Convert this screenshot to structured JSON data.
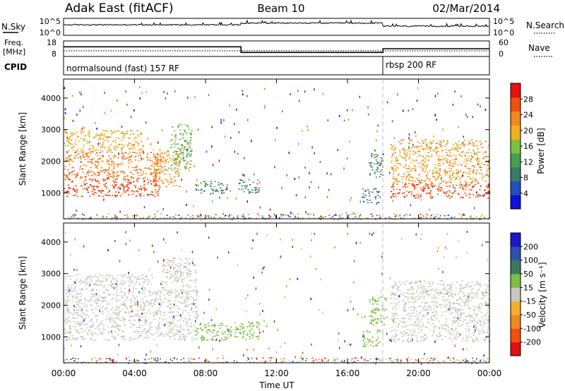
{
  "header": {
    "station": "Adak East (fitACF)",
    "beam": "Beam 10",
    "date": "02/Mar/2014"
  },
  "noise_panel": {
    "left_label": "N.Sky",
    "right_label": "N.Search",
    "left_ticks": [
      "10^5",
      "10^0"
    ],
    "right_ticks": [
      "10^5",
      "10^0"
    ]
  },
  "freq_panel": {
    "left_label_1": "Freq.",
    "left_label_2": "[MHz]",
    "left_ticks": [
      "18",
      "8"
    ],
    "right_label": "Nave",
    "right_ticks": [
      "60",
      "0"
    ],
    "cpid_label": "CPID",
    "segments": [
      {
        "from_hour": 0,
        "to_hour": 10,
        "freq": 14.2,
        "nave": 22
      },
      {
        "from_hour": 10,
        "to_hour": 18,
        "freq": 10.6,
        "nave": 22
      },
      {
        "from_hour": 18,
        "to_hour": 24,
        "freq": 13.0,
        "nave": 22
      }
    ],
    "cpid_segments": [
      {
        "label": "normalsound (fast) 157 RF",
        "from_hour": 0
      },
      {
        "label": "rbsp 200 RF",
        "from_hour": 18
      }
    ]
  },
  "colors": {
    "power_scale": [
      "#1010d8",
      "#2050b8",
      "#3a7a6a",
      "#44a050",
      "#7cc040",
      "#f0b020",
      "#f08820",
      "#f05010",
      "#e81010"
    ],
    "velocity_scale": [
      "#e01010",
      "#f05010",
      "#f08a20",
      "#f0b030",
      "#c8c8c0",
      "#c8c8c0",
      "#7cc040",
      "#3a7a5a",
      "#3050b0",
      "#1818c8"
    ],
    "ground_scatter": "#c8c8c0"
  },
  "chart_data": [
    {
      "type": "line",
      "name": "noise",
      "x_unit": "hours UT",
      "xlim": [
        0,
        24
      ],
      "ylim_log10": [
        0,
        5
      ],
      "series": [
        {
          "name": "N.Sky",
          "segments": [
            {
              "from_hour": 0,
              "to_hour": 10,
              "log10_value": 3.1
            },
            {
              "from_hour": 10,
              "to_hour": 18,
              "log10_value": 3.6
            },
            {
              "from_hour": 18,
              "to_hour": 24,
              "log10_value": 2.7
            }
          ]
        }
      ]
    },
    {
      "type": "heatmap",
      "name": "power",
      "ylabel": "Slant Range [km]",
      "yticks": [
        "1000",
        "2000",
        "3000",
        "4000"
      ],
      "ylim": [
        180,
        4600
      ],
      "xlim": [
        0,
        24
      ],
      "colorbar_label": "Power [dB]",
      "colorbar_ticks": [
        "4",
        "8",
        "12",
        "16",
        "20",
        "24",
        "28"
      ],
      "colorbar_range": [
        0,
        32
      ],
      "regions": [
        {
          "from_hour": 0.0,
          "to_hour": 5.5,
          "range_km": [
            900,
            1450
          ],
          "value": 27
        },
        {
          "from_hour": 0.0,
          "to_hour": 5.5,
          "range_km": [
            1450,
            2300
          ],
          "value": 24
        },
        {
          "from_hour": 0.0,
          "to_hour": 4.5,
          "range_km": [
            2300,
            3000
          ],
          "value": 20
        },
        {
          "from_hour": 5.0,
          "to_hour": 6.6,
          "range_km": [
            1200,
            2400
          ],
          "value": 22
        },
        {
          "from_hour": 6.0,
          "to_hour": 7.2,
          "range_km": [
            1700,
            3200
          ],
          "value": 15
        },
        {
          "from_hour": 7.4,
          "to_hour": 9.2,
          "range_km": [
            1000,
            1400
          ],
          "value": 10
        },
        {
          "from_hour": 9.8,
          "to_hour": 11.0,
          "range_km": [
            1000,
            1450
          ],
          "value": 9
        },
        {
          "from_hour": 16.8,
          "to_hour": 17.8,
          "range_km": [
            700,
            1150
          ],
          "value": 8
        },
        {
          "from_hour": 17.2,
          "to_hour": 18.0,
          "range_km": [
            1500,
            2300
          ],
          "value": 9
        },
        {
          "from_hour": 18.4,
          "to_hour": 24.0,
          "range_km": [
            850,
            1350
          ],
          "value": 27
        },
        {
          "from_hour": 18.4,
          "to_hour": 24.0,
          "range_km": [
            1350,
            2700
          ],
          "value": 22
        }
      ]
    },
    {
      "type": "heatmap",
      "name": "velocity",
      "ylabel": "Slant Range [km]",
      "yticks": [
        "1000",
        "2000",
        "3000",
        "4000"
      ],
      "ylim": [
        180,
        4600
      ],
      "xlim": [
        0,
        24
      ],
      "xticks": [
        "00:00",
        "04:00",
        "08:00",
        "12:00",
        "16:00",
        "20:00",
        "00:00"
      ],
      "xlabel": "Time UT",
      "colorbar_label": "Velocity [m s⁻¹]",
      "colorbar_ticks": [
        "-200",
        "-100",
        "-50",
        "-15",
        "15",
        "50",
        "100",
        "200"
      ],
      "regions": [
        {
          "from_hour": 0.0,
          "to_hour": 7.5,
          "range_km": [
            900,
            2500
          ],
          "value": 0
        },
        {
          "from_hour": 0.0,
          "to_hour": 5.0,
          "range_km": [
            2500,
            3000
          ],
          "value": 0
        },
        {
          "from_hour": 5.5,
          "to_hour": 7.5,
          "range_km": [
            2400,
            3500
          ],
          "value": 0
        },
        {
          "from_hour": 7.4,
          "to_hour": 9.8,
          "range_km": [
            900,
            1450
          ],
          "value": 30
        },
        {
          "from_hour": 9.8,
          "to_hour": 11.0,
          "range_km": [
            900,
            1500
          ],
          "value": 25
        },
        {
          "from_hour": 16.8,
          "to_hour": 17.8,
          "range_km": [
            700,
            1250
          ],
          "value": 30
        },
        {
          "from_hour": 17.2,
          "to_hour": 18.2,
          "range_km": [
            1400,
            2300
          ],
          "value": 30
        },
        {
          "from_hour": 18.4,
          "to_hour": 24.0,
          "range_km": [
            850,
            2800
          ],
          "value": 0
        }
      ]
    }
  ]
}
